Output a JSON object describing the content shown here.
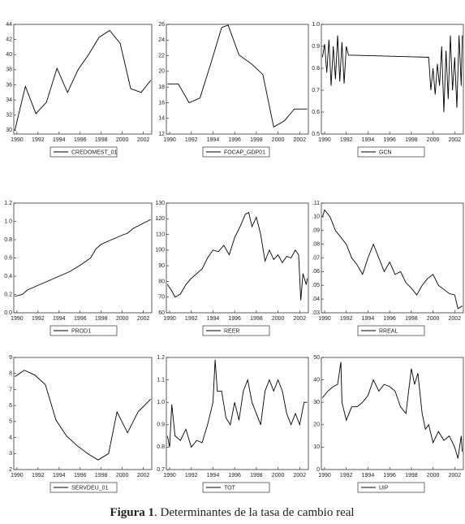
{
  "chart_data": [
    {
      "type": "line",
      "x": [
        1989.8,
        1990.8,
        1991.8,
        1992.8,
        1993.8,
        1994.8,
        1995.8,
        1996.8,
        1997.8,
        1998.8,
        1999.8,
        2000.8,
        2001.8,
        2002.7
      ],
      "series": [
        {
          "name": "CREDOMEST_01",
          "color": "#000000",
          "values": [
            30,
            35.8,
            32.2,
            33.7,
            38.2,
            35,
            38,
            40,
            42.3,
            43.2,
            41.5,
            35.5,
            35,
            36.6
          ]
        }
      ],
      "xlim": [
        1989.7,
        2002.8
      ],
      "xticks": [
        1990,
        1992,
        1994,
        1996,
        1998,
        2000,
        2002
      ],
      "ylim": [
        29.5,
        44
      ],
      "yticks": [
        30,
        32,
        34,
        36,
        38,
        40,
        42,
        44
      ]
    },
    {
      "type": "line",
      "x": [
        1989.8,
        1990.8,
        1991.8,
        1992.8,
        1993.8,
        1994.8,
        1995.4,
        1996.4,
        1997.6,
        1998.6,
        1999.6,
        2000.6,
        2001.5,
        2002.7
      ],
      "series": [
        {
          "name": "FOCAP_GDP01",
          "color": "#000000",
          "values": [
            18.4,
            18.4,
            16,
            16.6,
            21,
            25.6,
            25.9,
            22.1,
            20.9,
            19.6,
            12.9,
            13.7,
            15.2,
            15.2
          ]
        }
      ],
      "xlim": [
        1989.7,
        2002.8
      ],
      "xticks": [
        1990,
        1992,
        1994,
        1996,
        1998,
        2000,
        2002
      ],
      "ylim": [
        12,
        26
      ],
      "yticks": [
        12,
        14,
        16,
        18,
        20,
        22,
        24,
        26
      ]
    },
    {
      "type": "line",
      "x": [
        1989.8,
        1990.0,
        1990.2,
        1990.4,
        1990.6,
        1990.8,
        1991.0,
        1991.2,
        1991.4,
        1991.6,
        1991.8,
        1992.0,
        1992.2,
        1999.6,
        1999.8,
        2000.0,
        2000.2,
        2000.4,
        2000.6,
        2000.8,
        2001.0,
        2001.2,
        2001.4,
        2001.6,
        2001.8,
        2002.0,
        2002.2,
        2002.4,
        2002.6,
        2002.7
      ],
      "series": [
        {
          "name": "GCN",
          "color": "#000000",
          "values": [
            0.85,
            0.91,
            0.78,
            0.93,
            0.72,
            0.9,
            0.75,
            0.95,
            0.74,
            0.92,
            0.73,
            0.9,
            0.86,
            0.85,
            0.7,
            0.8,
            0.68,
            0.82,
            0.72,
            0.9,
            0.6,
            0.88,
            0.66,
            0.95,
            0.7,
            0.85,
            0.62,
            0.95,
            0.72,
            0.95
          ]
        }
      ],
      "xlim": [
        1989.7,
        2002.8
      ],
      "xticks": [
        1990,
        1992,
        1994,
        1996,
        1998,
        2000,
        2002
      ],
      "ylim": [
        0.5,
        1.0
      ],
      "yticks": [
        0.5,
        0.6,
        0.7,
        0.8,
        0.9,
        {
          "value": 1,
          "label": "1.0"
        }
      ]
    },
    {
      "type": "line",
      "x": [
        1989.8,
        1990.5,
        1991,
        1992,
        1993,
        1994,
        1995,
        1996,
        1997,
        1997.5,
        1998,
        1999,
        2000,
        2000.5,
        2001,
        2002,
        2002.7
      ],
      "series": [
        {
          "name": "PROD1",
          "color": "#000000",
          "values": [
            0.18,
            0.2,
            0.25,
            0.3,
            0.35,
            0.4,
            0.45,
            0.52,
            0.6,
            0.7,
            0.75,
            0.8,
            0.85,
            0.87,
            0.92,
            0.98,
            1.02
          ]
        }
      ],
      "xlim": [
        1989.7,
        2002.8
      ],
      "xticks": [
        1990,
        1992,
        1994,
        1996,
        1998,
        2000,
        2002
      ],
      "ylim": [
        0,
        1.2
      ],
      "yticks": [
        {
          "value": 0,
          "label": "0.0"
        },
        0.2,
        0.4,
        0.6,
        0.8,
        {
          "value": 1,
          "label": "1.0"
        },
        1.2
      ]
    },
    {
      "type": "line",
      "x": [
        1989.8,
        1990.2,
        1990.5,
        1991,
        1991.5,
        1992,
        1992.5,
        1993,
        1993.5,
        1994,
        1994.5,
        1995,
        1995.5,
        1996,
        1996.5,
        1997,
        1997.3,
        1997.6,
        1998,
        1998.4,
        1998.8,
        1999.2,
        1999.6,
        2000,
        2000.4,
        2000.8,
        2001.2,
        2001.6,
        2001.9,
        2002.1,
        2002.3,
        2002.6,
        2002.7
      ],
      "series": [
        {
          "name": "REER",
          "color": "#000000",
          "values": [
            78,
            74,
            70,
            72,
            78,
            82,
            85,
            88,
            95,
            100,
            99,
            103,
            97,
            108,
            115,
            123,
            124,
            115,
            121,
            110,
            93,
            100,
            94,
            97,
            92,
            96,
            95,
            100,
            97,
            68,
            85,
            78,
            82
          ]
        }
      ],
      "xlim": [
        1989.7,
        2002.8
      ],
      "xticks": [
        1990,
        1992,
        1994,
        1996,
        1998,
        2000,
        2002
      ],
      "ylim": [
        60,
        130
      ],
      "yticks": [
        60,
        70,
        80,
        90,
        100,
        110,
        120,
        130
      ]
    },
    {
      "type": "line",
      "x": [
        1989.8,
        1990,
        1990.5,
        1991,
        1991.5,
        1992,
        1992.5,
        1993,
        1993.5,
        1994,
        1994.5,
        1995,
        1995.5,
        1996,
        1996.5,
        1997,
        1997.5,
        1998,
        1998.5,
        1999,
        1999.5,
        2000,
        2000.5,
        2001,
        2001.5,
        2002,
        2002.3,
        2002.7
      ],
      "series": [
        {
          "name": "RREAL",
          "color": "#000000",
          "values": [
            0.1,
            0.105,
            0.1,
            0.09,
            0.085,
            0.08,
            0.07,
            0.065,
            0.058,
            0.07,
            0.08,
            0.07,
            0.06,
            0.067,
            0.058,
            0.06,
            0.052,
            0.048,
            0.043,
            0.05,
            0.055,
            0.058,
            0.05,
            0.047,
            0.044,
            0.043,
            0.033,
            0.035
          ]
        }
      ],
      "xlim": [
        1989.7,
        2002.8
      ],
      "xticks": [
        1990,
        1992,
        1994,
        1996,
        1998,
        2000,
        2002
      ],
      "ylim": [
        0.03,
        0.11
      ],
      "yticks": [
        {
          "value": 0.03,
          "label": ".03"
        },
        {
          "value": 0.04,
          "label": ".04"
        },
        {
          "value": 0.05,
          "label": ".05"
        },
        {
          "value": 0.06,
          "label": ".06"
        },
        {
          "value": 0.07,
          "label": ".07"
        },
        {
          "value": 0.08,
          "label": ".08"
        },
        {
          "value": 0.09,
          "label": ".09"
        },
        {
          "value": 0.1,
          "label": ".10"
        },
        {
          "value": 0.11,
          "label": ".11"
        }
      ]
    },
    {
      "type": "line",
      "x": [
        1989.8,
        1990.7,
        1991.7,
        1992.7,
        1993.7,
        1994.7,
        1995.7,
        1996.7,
        1997.7,
        1998.7,
        1999.5,
        2000.5,
        2001.5,
        2002.7
      ],
      "series": [
        {
          "name": "SERVDEU_01",
          "color": "#000000",
          "values": [
            7.8,
            8.2,
            7.9,
            7.3,
            5.1,
            4.1,
            3.5,
            3.0,
            2.6,
            3.0,
            5.6,
            4.3,
            5.6,
            6.4
          ]
        }
      ],
      "xlim": [
        1989.7,
        2002.8
      ],
      "xticks": [
        1990,
        1992,
        1994,
        1996,
        1998,
        2000,
        2002
      ],
      "ylim": [
        2,
        9
      ],
      "yticks": [
        2,
        3,
        4,
        5,
        6,
        7,
        8,
        9
      ]
    },
    {
      "type": "line",
      "x": [
        1989.8,
        1990,
        1990.2,
        1990.5,
        1991,
        1991.5,
        1992,
        1992.5,
        1993,
        1993.5,
        1994,
        1994.2,
        1994.4,
        1994.8,
        1995.2,
        1995.6,
        1996,
        1996.4,
        1996.8,
        1997.2,
        1997.6,
        1998,
        1998.4,
        1998.8,
        1999.2,
        1999.6,
        2000,
        2000.4,
        2000.8,
        2001.2,
        2001.6,
        2002,
        2002.4,
        2002.7
      ],
      "series": [
        {
          "name": "TOT",
          "color": "#000000",
          "values": [
            0.85,
            0.8,
            0.99,
            0.85,
            0.83,
            0.88,
            0.8,
            0.83,
            0.82,
            0.9,
            1.0,
            1.19,
            1.05,
            1.05,
            0.93,
            0.9,
            1.0,
            0.92,
            1.05,
            1.1,
            1.0,
            0.95,
            0.9,
            1.05,
            1.1,
            1.05,
            1.1,
            1.05,
            0.95,
            0.9,
            0.95,
            0.9,
            1.0,
            1.0
          ]
        }
      ],
      "xlim": [
        1989.7,
        2002.8
      ],
      "xticks": [
        1990,
        1992,
        1994,
        1996,
        1998,
        2000,
        2002
      ],
      "ylim": [
        0.7,
        1.2
      ],
      "yticks": [
        0.7,
        0.8,
        0.9,
        {
          "value": 1,
          "label": "1.0"
        },
        1.1,
        1.2
      ]
    },
    {
      "type": "line",
      "x": [
        1989.8,
        1990.3,
        1990.8,
        1991.2,
        1991.5,
        1991.6,
        1992,
        1992.5,
        1993,
        1993.5,
        1994,
        1994.5,
        1995,
        1995.5,
        1996,
        1996.5,
        1997,
        1997.5,
        1998,
        1998.3,
        1998.6,
        1999,
        1999.3,
        1999.6,
        2000,
        2000.5,
        2001,
        2001.5,
        2002,
        2002.3,
        2002.6,
        2002.7
      ],
      "series": [
        {
          "name": "UIP",
          "color": "#000000",
          "values": [
            32,
            35,
            37,
            38,
            48,
            30,
            22,
            28,
            28,
            30,
            33,
            40,
            35,
            38,
            37,
            35,
            28,
            25,
            45,
            38,
            43,
            25,
            18,
            20,
            12,
            17,
            13,
            15,
            10,
            5,
            15,
            8
          ]
        }
      ],
      "xlim": [
        1989.7,
        2002.8
      ],
      "xticks": [
        1990,
        1992,
        1994,
        1996,
        1998,
        2000,
        2002
      ],
      "ylim": [
        0,
        50
      ],
      "yticks": [
        0,
        10,
        20,
        30,
        40,
        50
      ]
    }
  ],
  "caption": {
    "label": "Figura 1",
    "text": ". Determinantes de la tasa de cambio real"
  }
}
